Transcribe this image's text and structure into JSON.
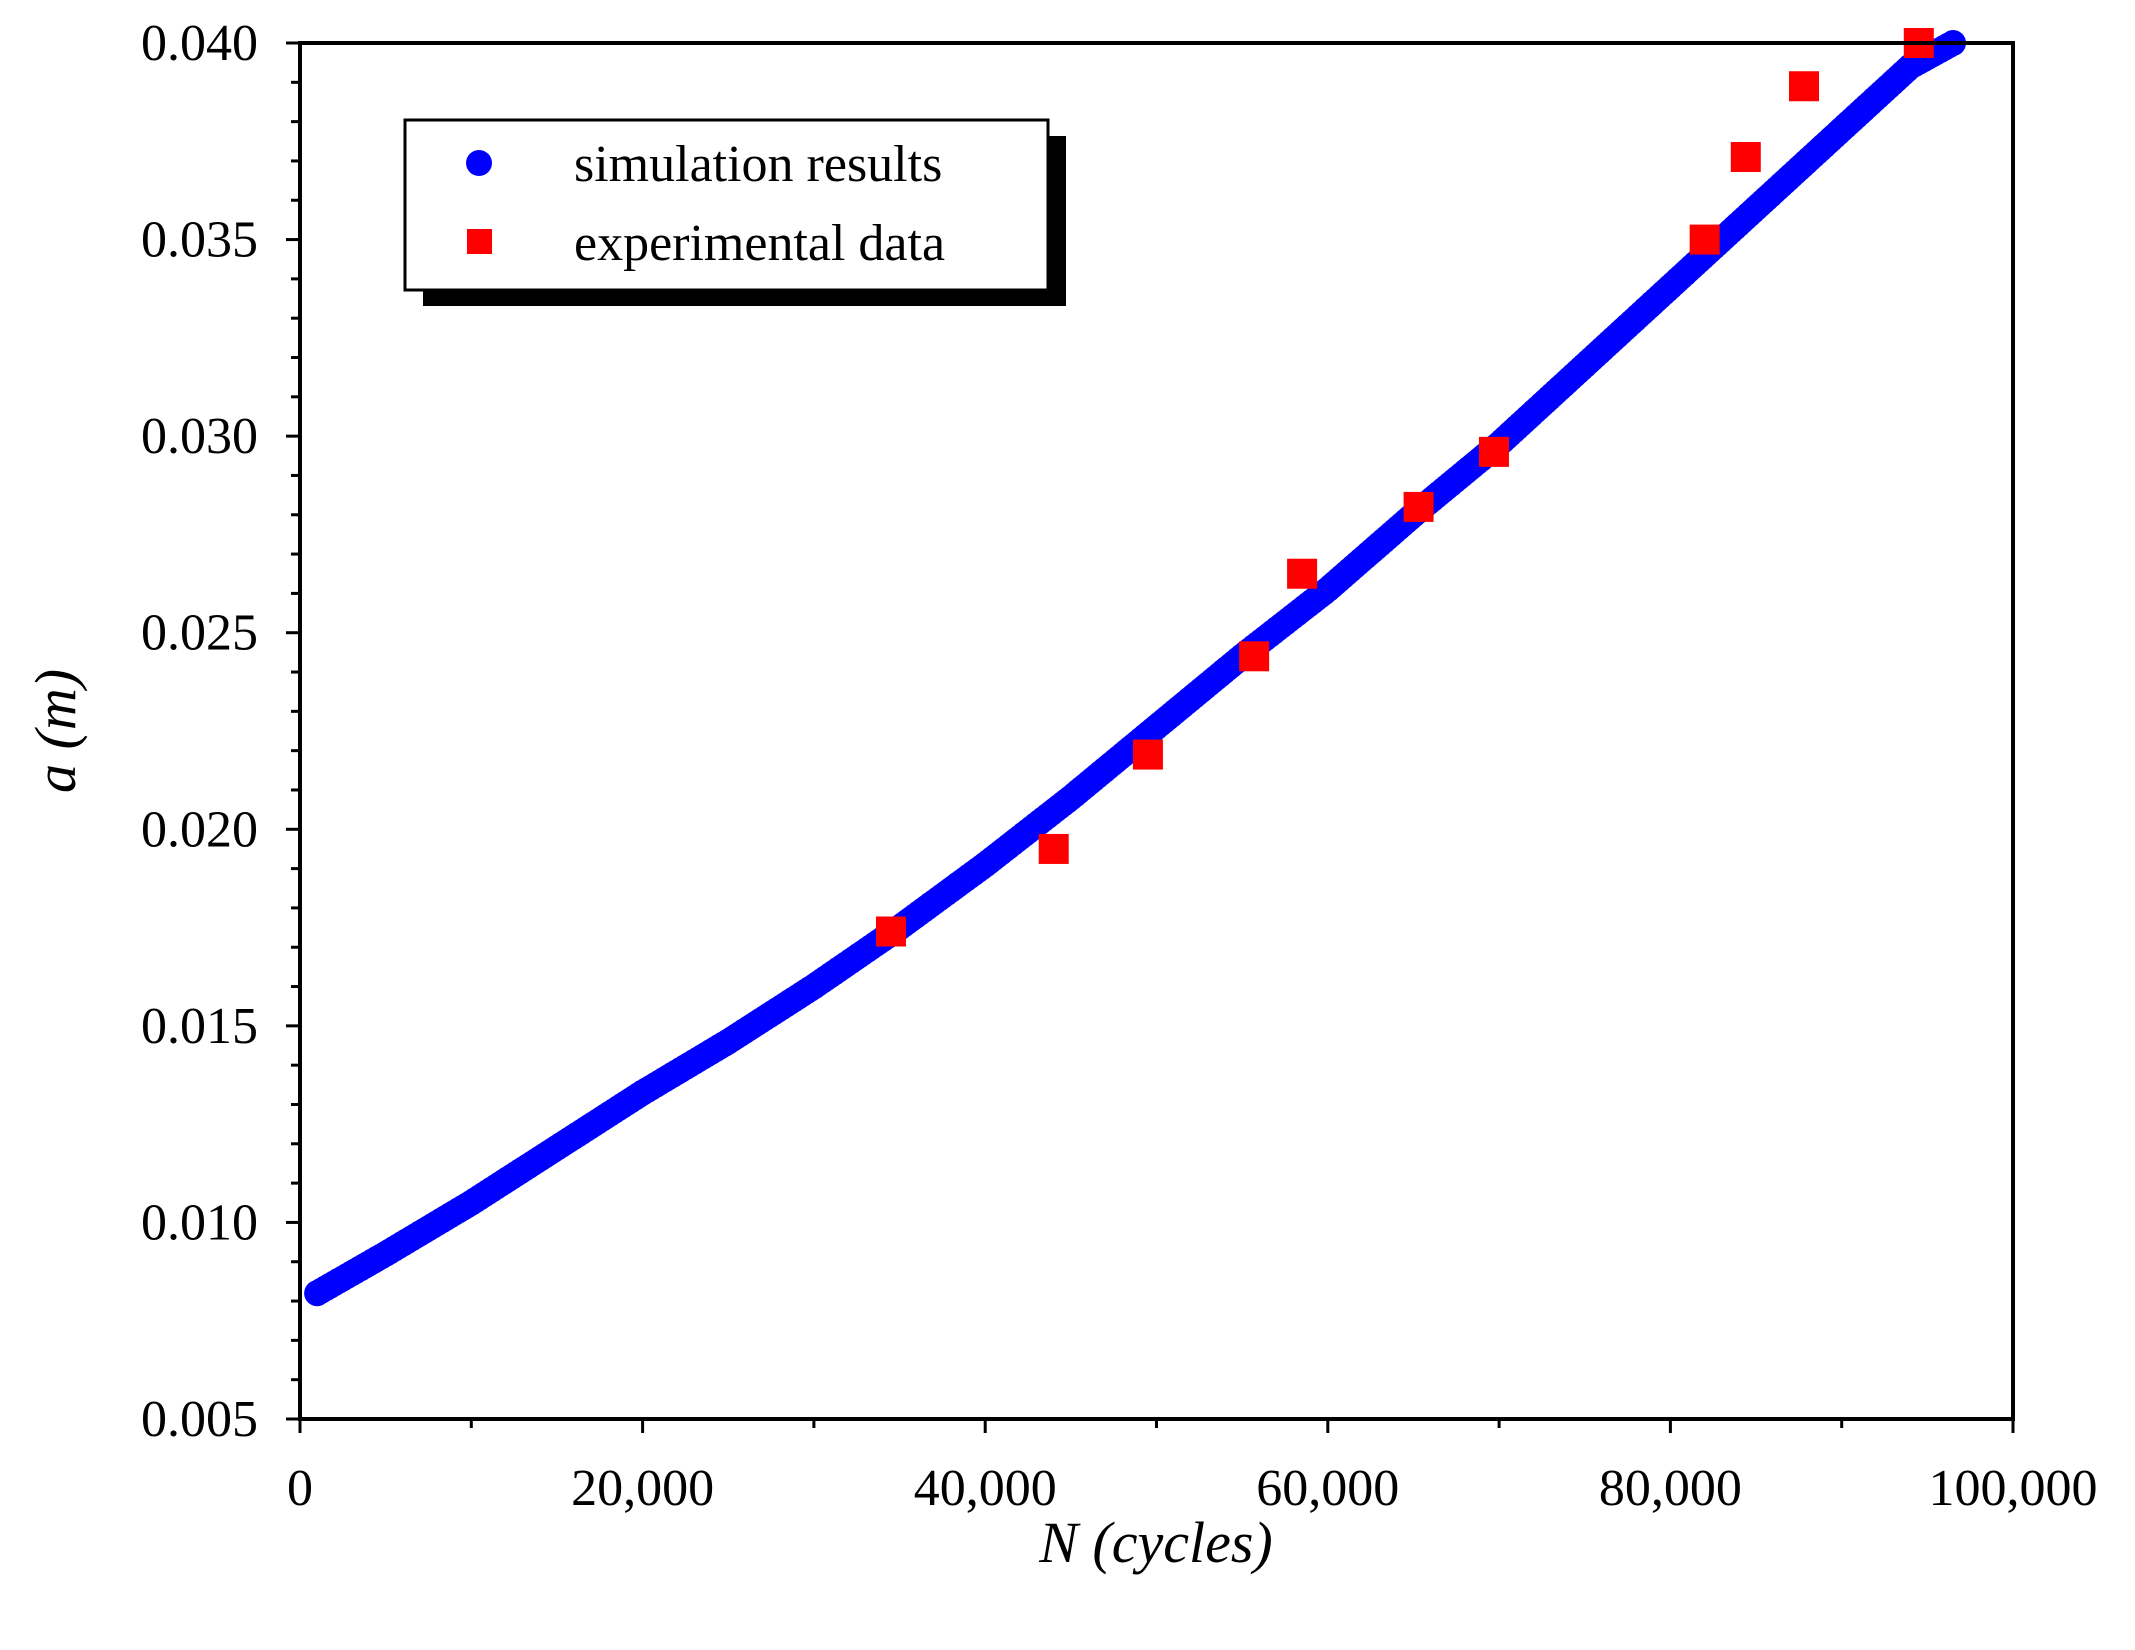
{
  "chart_data": {
    "type": "scatter",
    "title": "",
    "xlabel": "N (cycles)",
    "ylabel": "a (m)",
    "xlim": [
      0,
      100000
    ],
    "ylim": [
      0.005,
      0.04
    ],
    "x_ticks": [
      0,
      20000,
      40000,
      60000,
      80000,
      100000
    ],
    "x_tick_labels": [
      "0",
      "20,000",
      "40,000",
      "60,000",
      "80,000",
      "100,000"
    ],
    "y_ticks": [
      0.005,
      0.01,
      0.015,
      0.02,
      0.025,
      0.03,
      0.035,
      0.04
    ],
    "y_tick_labels": [
      "0.005",
      "0.010",
      "0.015",
      "0.020",
      "0.025",
      "0.030",
      "0.035",
      "0.040"
    ],
    "grid": false,
    "legend_position": "top-left",
    "series": [
      {
        "name": "simulation results",
        "marker": "circle",
        "color": "#0000ff",
        "x": [
          1000,
          5000,
          10000,
          15000,
          20000,
          25000,
          30000,
          35000,
          40000,
          45000,
          50000,
          55000,
          60000,
          65000,
          70000,
          75000,
          80000,
          85000,
          90000,
          94000,
          96500
        ],
        "y": [
          0.0082,
          0.0092,
          0.0105,
          0.0119,
          0.0133,
          0.0146,
          0.016,
          0.0175,
          0.0191,
          0.0208,
          0.0226,
          0.0244,
          0.0261,
          0.028,
          0.0298,
          0.0318,
          0.0338,
          0.0358,
          0.0378,
          0.0394,
          0.04
        ]
      },
      {
        "name": "experimental data",
        "marker": "square",
        "color": "#ff0000",
        "x": [
          34500,
          44000,
          49500,
          55700,
          58500,
          65300,
          69700,
          82000,
          84400,
          87800,
          94500
        ],
        "y": [
          0.0174,
          0.0195,
          0.0219,
          0.0244,
          0.0265,
          0.0282,
          0.0296,
          0.035,
          0.0371,
          0.0389,
          0.04
        ]
      }
    ]
  }
}
